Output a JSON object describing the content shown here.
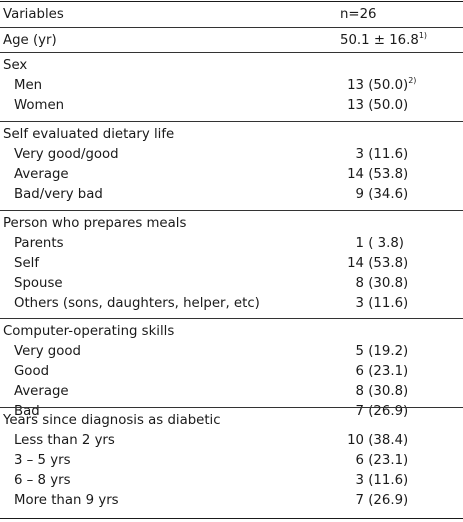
{
  "header": {
    "variables_label": "Variables",
    "n_label": "n=26"
  },
  "age": {
    "label": "Age (yr)",
    "value": "50.1 ± 16.8",
    "footnote": "1)"
  },
  "groups": [
    {
      "title": "Sex",
      "items": [
        {
          "label": "Men",
          "n": "13",
          "pct": "(50.0)",
          "footnote": "2)"
        },
        {
          "label": "Women",
          "n": "13",
          "pct": "(50.0)"
        }
      ]
    },
    {
      "title": "Self evaluated dietary life",
      "items": [
        {
          "label": "Very good/good",
          "n": "3",
          "pct": "(11.6)"
        },
        {
          "label": "Average",
          "n": "14",
          "pct": "(53.8)"
        },
        {
          "label": "Bad/very bad",
          "n": "9",
          "pct": "(34.6)"
        }
      ]
    },
    {
      "title": "Person who prepares meals",
      "items": [
        {
          "label": "Parents",
          "n": "1",
          "pct": "( 3.8)"
        },
        {
          "label": "Self",
          "n": "14",
          "pct": "(53.8)"
        },
        {
          "label": "Spouse",
          "n": "8",
          "pct": "(30.8)"
        },
        {
          "label": "Others (sons, daughters, helper, etc)",
          "n": "3",
          "pct": "(11.6)"
        }
      ]
    },
    {
      "title": "Computer-operating skills",
      "items": [
        {
          "label": "Very good",
          "n": "5",
          "pct": "(19.2)"
        },
        {
          "label": "Good",
          "n": "6",
          "pct": "(23.1)"
        },
        {
          "label": "Average",
          "n": "8",
          "pct": "(30.8)"
        },
        {
          "label": "Bad",
          "n": "7",
          "pct": "(26.9)"
        }
      ]
    },
    {
      "title": "Years since diagnosis as diabetic",
      "items": [
        {
          "label": "Less than 2 yrs",
          "n": "10",
          "pct": "(38.4)"
        },
        {
          "label": "3 – 5 yrs",
          "n": "6",
          "pct": "(23.1)"
        },
        {
          "label": "6 – 8 yrs",
          "n": "3",
          "pct": "(11.6)"
        },
        {
          "label": "More than 9 yrs",
          "n": "7",
          "pct": "(26.9)"
        }
      ]
    }
  ]
}
